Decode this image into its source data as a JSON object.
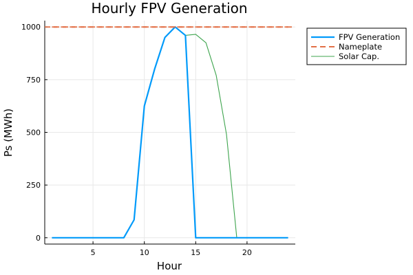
{
  "chart_data": {
    "type": "line",
    "title": "Hourly FPV Generation",
    "xlabel": "Hour",
    "ylabel": "Ps (MWh)",
    "xlim": [
      0.3,
      24.7
    ],
    "ylim": [
      -30,
      1030
    ],
    "xticks": [
      5,
      10,
      15,
      20
    ],
    "yticks": [
      0,
      250,
      500,
      750,
      1000
    ],
    "grid": true,
    "legend_position": "outside-top-right",
    "x": [
      1,
      2,
      3,
      4,
      5,
      6,
      7,
      8,
      9,
      10,
      11,
      12,
      13,
      14,
      15,
      16,
      17,
      18,
      19,
      20,
      21,
      22,
      23,
      24
    ],
    "series": [
      {
        "name": "FPV Generation",
        "color": "#009AFA",
        "style": "solid",
        "values": [
          0,
          0,
          0,
          0,
          0,
          0,
          0,
          0,
          85,
          625,
          800,
          950,
          1000,
          960,
          0,
          0,
          0,
          0,
          0,
          0,
          0,
          0,
          0,
          0
        ]
      },
      {
        "name": "Nameplate",
        "color": "#E26F46",
        "style": "dashed",
        "values": [
          1000,
          1000,
          1000,
          1000,
          1000,
          1000,
          1000,
          1000,
          1000,
          1000,
          1000,
          1000,
          1000,
          1000,
          1000,
          1000,
          1000,
          1000,
          1000,
          1000,
          1000,
          1000,
          1000,
          1000
        ]
      },
      {
        "name": "Solar Cap.",
        "color": "#3DA44D",
        "style": "solid",
        "values": [
          0,
          0,
          0,
          0,
          0,
          0,
          0,
          0,
          85,
          625,
          800,
          950,
          1000,
          960,
          965,
          925,
          770,
          490,
          0,
          0,
          0,
          0,
          0,
          0
        ]
      }
    ]
  }
}
